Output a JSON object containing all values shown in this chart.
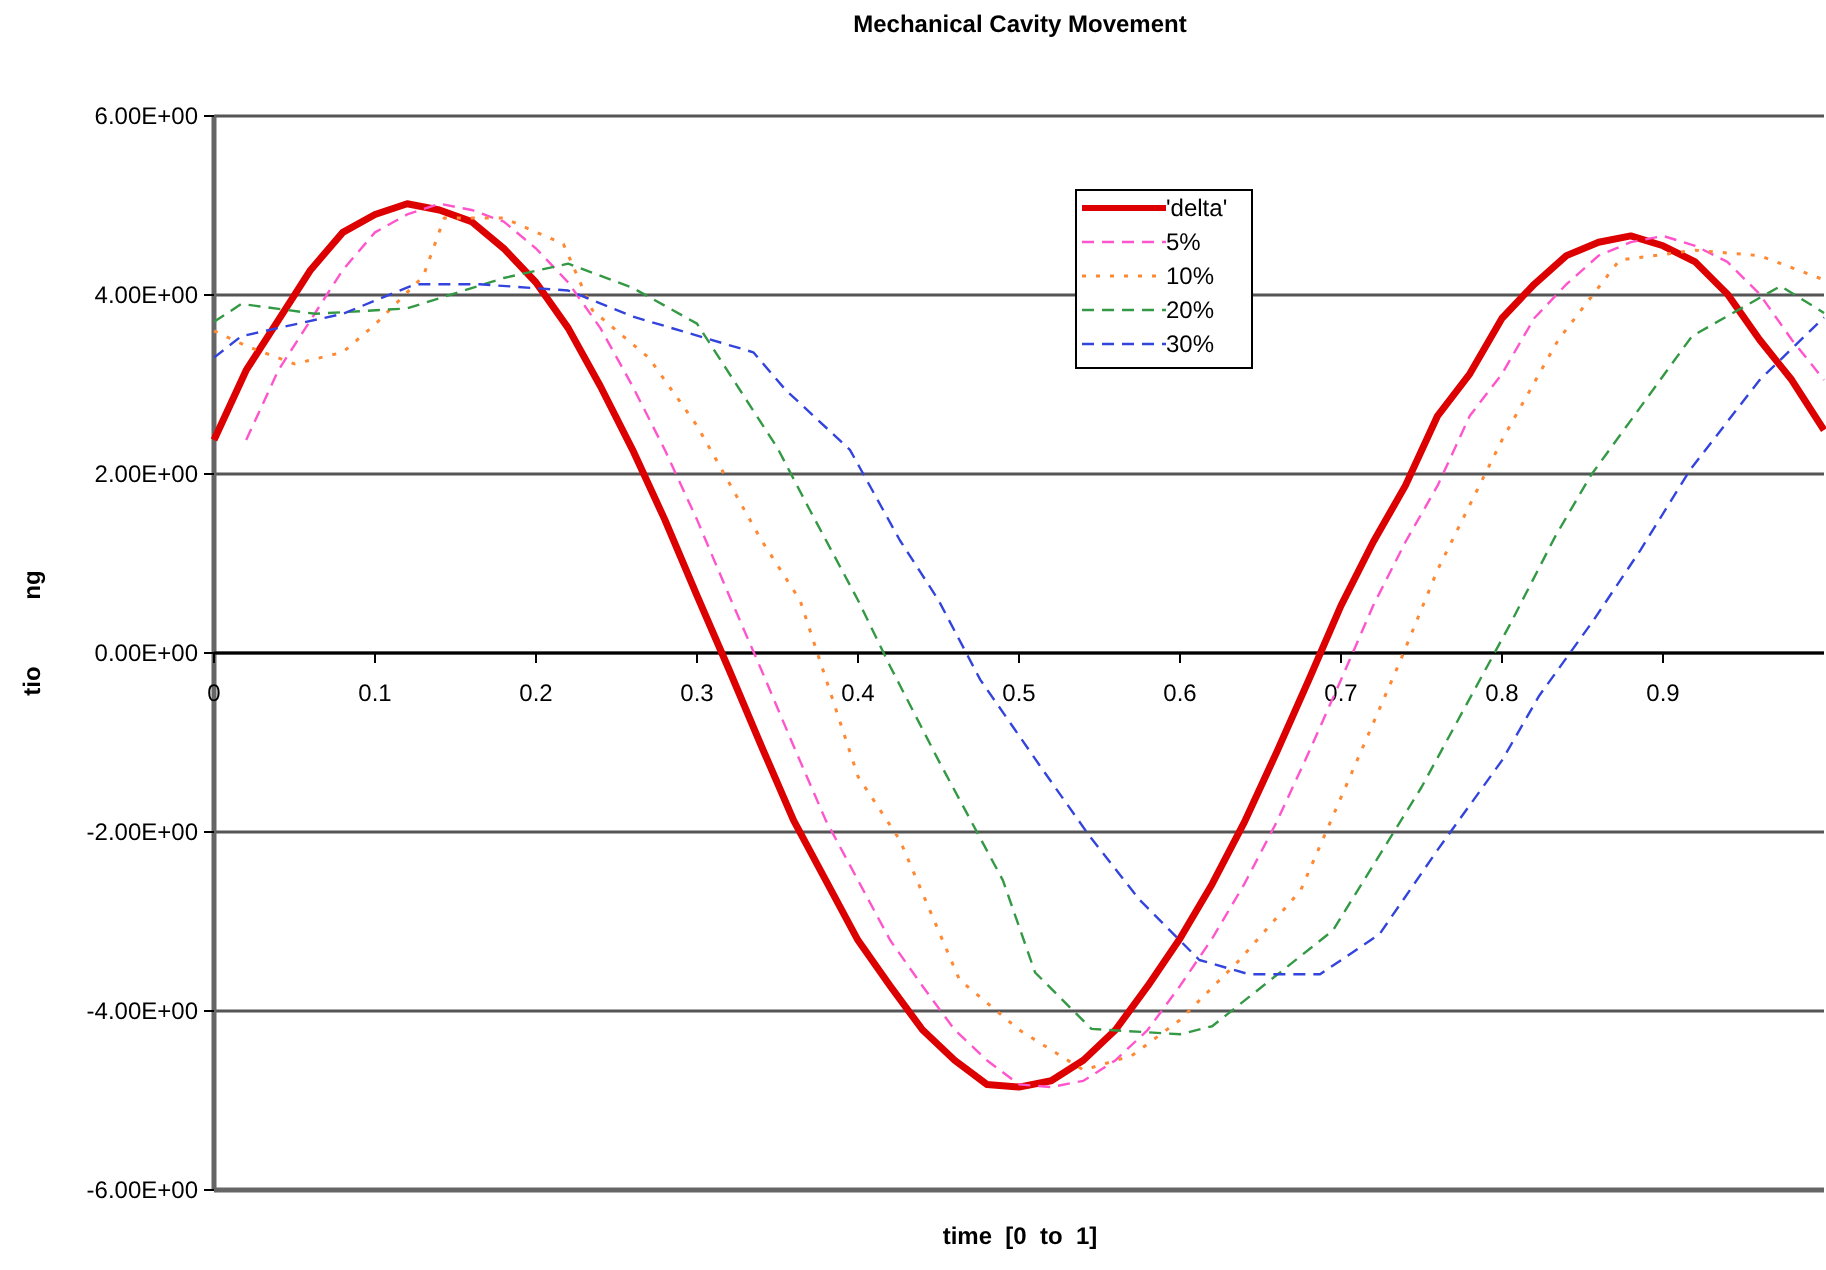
{
  "chart_data": {
    "type": "line",
    "title": "Mechanical  Cavity  Movement",
    "xlabel": "time  [0  to  1]",
    "ylabel": "tio          ng",
    "xlim": [
      0,
      1
    ],
    "xticks": [
      0,
      0.1,
      0.2,
      0.3,
      0.4,
      0.5,
      0.6,
      0.7,
      0.8,
      0.9
    ],
    "ylim": [
      -6,
      6
    ],
    "yticks": [
      {
        "value": -6,
        "label": "-6.00E+00"
      },
      {
        "value": -4,
        "label": "-4.00E+00"
      },
      {
        "value": -2,
        "label": "-2.00E+00"
      },
      {
        "value": 0,
        "label": "0.00E+00"
      },
      {
        "value": 2,
        "label": "2.00E+00"
      },
      {
        "value": 4,
        "label": "4.00E+00"
      },
      {
        "value": 6,
        "label": "6.00E+00"
      }
    ],
    "grid": "y",
    "legend": "top",
    "marker": "none",
    "series": [
      {
        "name": "'delta'",
        "color": "#dd0000",
        "line_style": "solid",
        "x": [
          0,
          0.02,
          0.04,
          0.06,
          0.08,
          0.1,
          0.12,
          0.14,
          0.16,
          0.18,
          0.2,
          0.22,
          0.24,
          0.26,
          0.28,
          0.3,
          0.32,
          0.34,
          0.36,
          0.38,
          0.4,
          0.42,
          0.44,
          0.46,
          0.48,
          0.5,
          0.52,
          0.54,
          0.56,
          0.58,
          0.6,
          0.62,
          0.64,
          0.66,
          0.68,
          0.7,
          0.72,
          0.74,
          0.76,
          0.78,
          0.8,
          0.82,
          0.84,
          0.86,
          0.88,
          0.9,
          0.92,
          0.94,
          0.96,
          0.98,
          1
        ],
        "values": [
          2.38,
          3.16,
          3.72,
          4.28,
          4.7,
          4.9,
          5.02,
          4.95,
          4.82,
          4.52,
          4.14,
          3.63,
          2.98,
          2.27,
          1.49,
          0.64,
          -0.19,
          -1.04,
          -1.87,
          -2.54,
          -3.21,
          -3.72,
          -4.21,
          -4.55,
          -4.82,
          -4.85,
          -4.78,
          -4.55,
          -4.21,
          -3.72,
          -3.19,
          -2.58,
          -1.89,
          -1.11,
          -0.3,
          0.53,
          1.24,
          1.87,
          2.65,
          3.12,
          3.74,
          4.12,
          4.44,
          4.59,
          4.66,
          4.55,
          4.37,
          4.01,
          3.5,
          3.05,
          2.49
        ]
      },
      {
        "name": "5%",
        "color": "#ff55cc",
        "line_style": "dashed",
        "x": [
          0.02,
          0.04,
          0.06,
          0.08,
          0.1,
          0.12,
          0.14,
          0.16,
          0.18,
          0.2,
          0.22,
          0.24,
          0.26,
          0.28,
          0.3,
          0.32,
          0.34,
          0.36,
          0.38,
          0.4,
          0.42,
          0.44,
          0.46,
          0.48,
          0.5,
          0.52,
          0.54,
          0.56,
          0.58,
          0.6,
          0.62,
          0.64,
          0.66,
          0.68,
          0.7,
          0.72,
          0.74,
          0.76,
          0.78,
          0.8,
          0.82,
          0.84,
          0.86,
          0.88,
          0.9,
          0.92,
          0.94,
          0.96,
          0.98,
          1
        ],
        "values": [
          2.38,
          3.16,
          3.72,
          4.28,
          4.7,
          4.9,
          5.02,
          4.95,
          4.82,
          4.52,
          4.14,
          3.63,
          2.98,
          2.27,
          1.49,
          0.64,
          -0.19,
          -1.04,
          -1.87,
          -2.54,
          -3.21,
          -3.72,
          -4.21,
          -4.55,
          -4.82,
          -4.85,
          -4.78,
          -4.55,
          -4.21,
          -3.72,
          -3.19,
          -2.58,
          -1.89,
          -1.11,
          -0.3,
          0.53,
          1.24,
          1.87,
          2.65,
          3.12,
          3.74,
          4.12,
          4.44,
          4.59,
          4.66,
          4.55,
          4.37,
          4.01,
          3.5,
          3.05
        ]
      },
      {
        "name": "10%",
        "color": "#ff8833",
        "line_style": "dotted",
        "x": [
          0,
          0.02,
          0.05,
          0.08,
          0.1,
          0.13,
          0.143,
          0.18,
          0.217,
          0.235,
          0.27,
          0.3,
          0.34,
          0.364,
          0.4,
          0.426,
          0.463,
          0.5,
          0.54,
          0.57,
          0.6,
          0.637,
          0.675,
          0.71,
          0.737,
          0.76,
          0.8,
          0.835,
          0.873,
          0.92,
          0.96,
          1
        ],
        "values": [
          3.6,
          3.43,
          3.23,
          3.36,
          3.67,
          4.21,
          4.86,
          4.86,
          4.57,
          3.83,
          3.3,
          2.54,
          1.26,
          0.59,
          -1.38,
          -2.09,
          -3.65,
          -4.21,
          -4.66,
          -4.5,
          -4.1,
          -3.43,
          -2.65,
          -1.2,
          -0.08,
          0.93,
          2.38,
          3.5,
          4.39,
          4.5,
          4.44,
          4.17
        ]
      },
      {
        "name": "20%",
        "color": "#339944",
        "line_style": "dashed",
        "x": [
          0,
          0.017,
          0.063,
          0.12,
          0.18,
          0.22,
          0.26,
          0.3,
          0.35,
          0.37,
          0.4,
          0.42,
          0.45,
          0.49,
          0.51,
          0.545,
          0.6,
          0.62,
          0.695,
          0.75,
          0.805,
          0.833,
          0.855,
          0.918,
          0.973,
          1
        ],
        "values": [
          3.7,
          3.9,
          3.79,
          3.85,
          4.19,
          4.35,
          4.08,
          3.68,
          2.29,
          1.6,
          0.59,
          -0.15,
          -1.2,
          -2.54,
          -3.57,
          -4.2,
          -4.26,
          -4.17,
          -3.1,
          -1.5,
          0.32,
          1.3,
          1.98,
          3.54,
          4.1,
          3.8
        ]
      },
      {
        "name": "30%",
        "color": "#3344dd",
        "line_style": "dashed",
        "x": [
          0,
          0.017,
          0.08,
          0.125,
          0.165,
          0.22,
          0.26,
          0.335,
          0.355,
          0.395,
          0.426,
          0.45,
          0.476,
          0.513,
          0.544,
          0.575,
          0.612,
          0.643,
          0.687,
          0.724,
          0.76,
          0.8,
          0.823,
          0.857,
          0.886,
          0.917,
          0.96,
          1
        ],
        "values": [
          3.3,
          3.54,
          3.79,
          4.12,
          4.12,
          4.05,
          3.76,
          3.36,
          2.94,
          2.27,
          1.26,
          0.59,
          -0.3,
          -1.26,
          -2.05,
          -2.76,
          -3.43,
          -3.59,
          -3.59,
          -3.14,
          -2.2,
          -1.2,
          -0.48,
          0.37,
          1.15,
          2.05,
          3.05,
          3.75
        ]
      }
    ]
  }
}
